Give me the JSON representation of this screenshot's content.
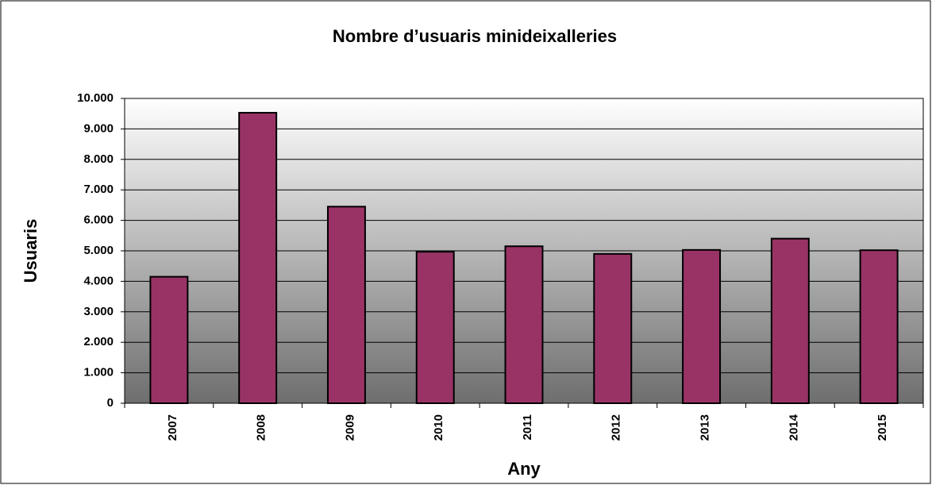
{
  "chart_data": {
    "type": "bar",
    "title": "Nombre d’usuaris minideixalleries",
    "x_label": "Any",
    "y_label": "Usuaris",
    "categories": [
      "2007",
      "2008",
      "2009",
      "2010",
      "2011",
      "2012",
      "2013",
      "2014",
      "2015"
    ],
    "values": [
      4150,
      9530,
      6450,
      4970,
      5150,
      4900,
      5030,
      5400,
      5020
    ],
    "color": "#993366",
    "ylim": [
      0,
      10000
    ],
    "yticks": [
      0,
      {
        "value": 1000,
        "label": "1.000"
      },
      {
        "value": 2000,
        "label": "2.000"
      },
      {
        "value": 3000,
        "label": "3.000"
      },
      {
        "value": 4000,
        "label": "4.000"
      },
      {
        "value": 5000,
        "label": "5.000"
      },
      {
        "value": 6000,
        "label": "6.000"
      },
      {
        "value": 7000,
        "label": "7.000"
      },
      {
        "value": 8000,
        "label": "8.000"
      },
      {
        "value": 9000,
        "label": "9.000"
      },
      {
        "value": 10000,
        "label": "10.000"
      }
    ],
    "grid": true
  }
}
